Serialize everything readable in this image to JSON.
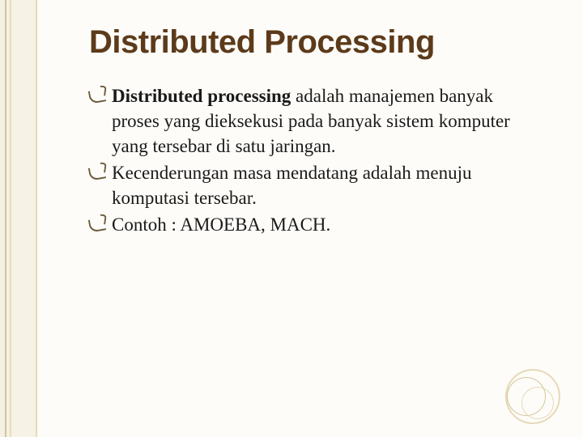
{
  "slide": {
    "title": "Distributed Processing",
    "title_color": "#5c3a1a",
    "title_fontsize": 40,
    "body_fontsize": 23,
    "background_color": "#fdfcf8",
    "border_accent_color": "#e6d9b8",
    "bullets": [
      {
        "lead": "Distributed processing",
        "rest": " adalah manajemen banyak proses yang dieksekusi pada banyak sistem komputer yang tersebar di satu jaringan."
      },
      {
        "lead": "",
        "rest": "Kecenderungan masa mendatang adalah menuju komputasi tersebar."
      },
      {
        "lead": "",
        "rest": "Contoh : AMOEBA, MACH."
      }
    ]
  }
}
